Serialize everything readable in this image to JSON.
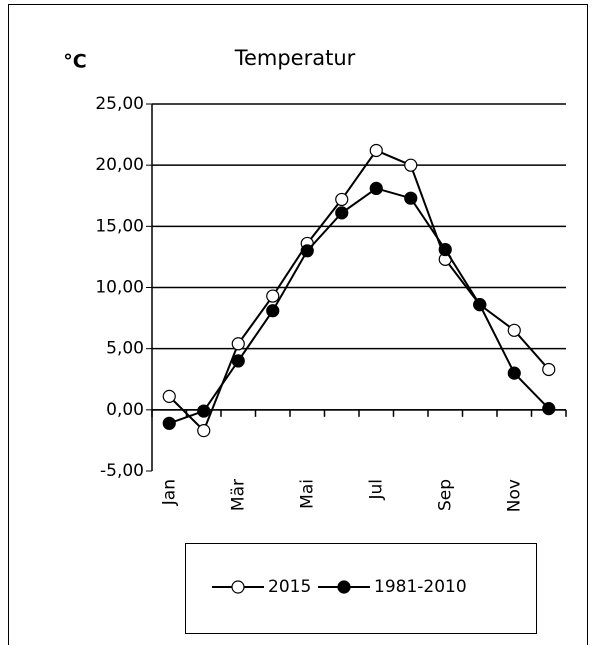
{
  "chart_data": {
    "type": "line",
    "title": "Temperatur",
    "y_label": "°C",
    "categories": [
      "Jan",
      null,
      "Mär",
      null,
      "Mai",
      null,
      "Jul",
      null,
      "Sep",
      null,
      "Nov",
      null
    ],
    "series": [
      {
        "name": "2015",
        "color": "#ffffff",
        "values": [
          1.1,
          -1.7,
          5.4,
          9.3,
          13.6,
          17.2,
          21.2,
          20.0,
          12.3,
          8.6,
          6.5,
          3.3
        ]
      },
      {
        "name": "1981-2010",
        "color": "#000000",
        "values": [
          -1.1,
          -0.1,
          4.0,
          8.1,
          13.0,
          16.1,
          18.1,
          17.3,
          13.1,
          8.6,
          3.0,
          0.1
        ]
      }
    ],
    "ylim": [
      -5,
      25
    ],
    "yticks": [
      {
        "value": -5,
        "label": "-5,00"
      },
      {
        "value": 0,
        "label": "0,00"
      },
      {
        "value": 5,
        "label": "5,00"
      },
      {
        "value": 10,
        "label": "10,00"
      },
      {
        "value": 15,
        "label": "15,00"
      },
      {
        "value": 20,
        "label": "20,00"
      },
      {
        "value": 25,
        "label": "25,00"
      }
    ],
    "grid": true,
    "legend": "bottom"
  }
}
